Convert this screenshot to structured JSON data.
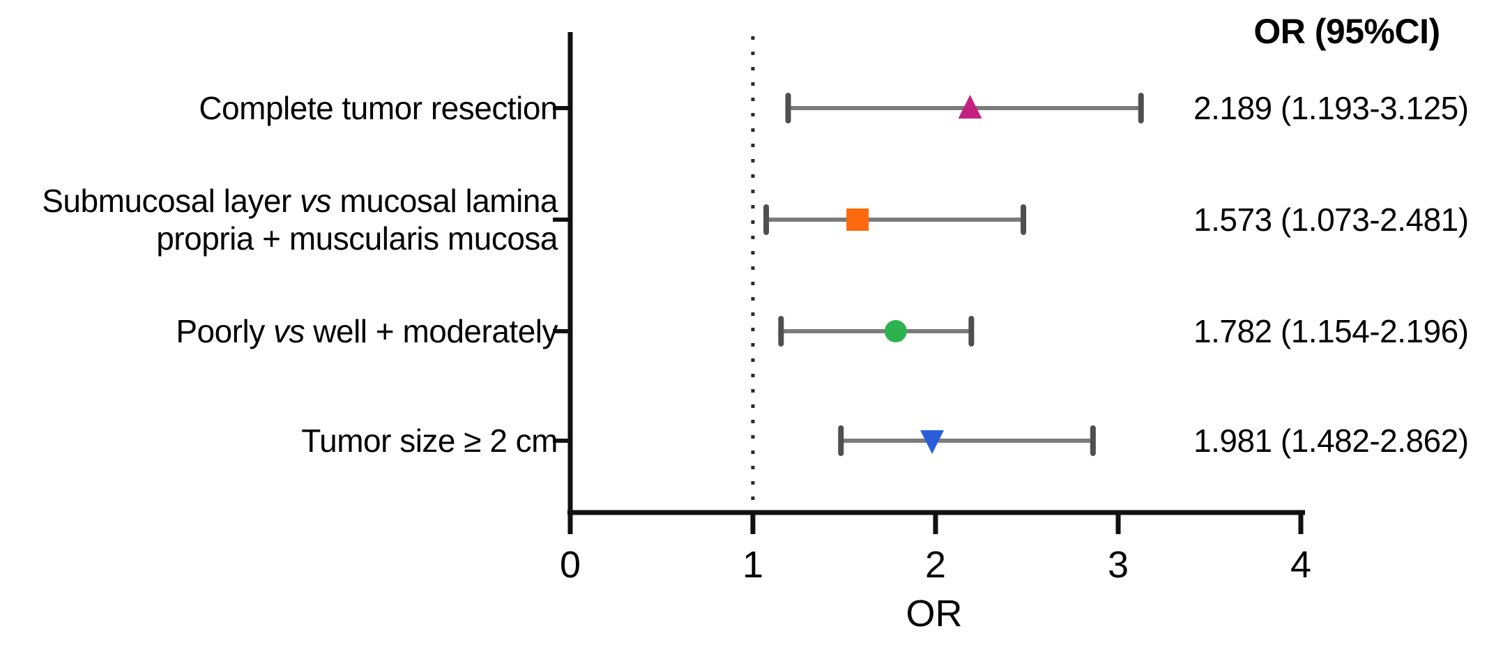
{
  "header": {
    "column_title": "OR (95%CI)"
  },
  "chart_data": {
    "type": "forest",
    "xlabel": "OR",
    "x_axis": {
      "min": 0,
      "max": 4,
      "ticks": [
        0,
        1,
        2,
        3,
        4
      ],
      "reference_line": 1
    },
    "colors": {
      "axis": "#111111",
      "error_bar": "#7b7b7b",
      "error_cap": "#4f4f4f",
      "reference_line": "#2a2a2a"
    },
    "rows": [
      {
        "label_lines": [
          [
            {
              "text": "Complete tumor resection"
            }
          ]
        ],
        "or": 2.189,
        "ci_low": 1.193,
        "ci_high": 3.125,
        "or_ci_text": "2.189 (1.193-3.125)",
        "marker": "triangle-up",
        "marker_color": "#c32182"
      },
      {
        "label_lines": [
          [
            {
              "text": "Submucosal layer "
            },
            {
              "text": "vs",
              "italic": true
            },
            {
              "text": " mucosal lamina"
            }
          ],
          [
            {
              "text": "propria + muscularis mucosa"
            }
          ]
        ],
        "or": 1.573,
        "ci_low": 1.073,
        "ci_high": 2.481,
        "or_ci_text": "1.573 (1.073-2.481)",
        "marker": "square",
        "marker_color": "#fc6a0d"
      },
      {
        "label_lines": [
          [
            {
              "text": "Poorly "
            },
            {
              "text": "vs",
              "italic": true
            },
            {
              "text": " well + moderately"
            }
          ]
        ],
        "or": 1.782,
        "ci_low": 1.154,
        "ci_high": 2.196,
        "or_ci_text": "1.782 (1.154-2.196)",
        "marker": "circle",
        "marker_color": "#2db34d"
      },
      {
        "label_lines": [
          [
            {
              "text": "Tumor size ≥ 2 cm"
            }
          ]
        ],
        "or": 1.981,
        "ci_low": 1.482,
        "ci_high": 2.862,
        "or_ci_text": "1.981 (1.482-2.862)",
        "marker": "triangle-down",
        "marker_color": "#2b5edb"
      }
    ]
  }
}
